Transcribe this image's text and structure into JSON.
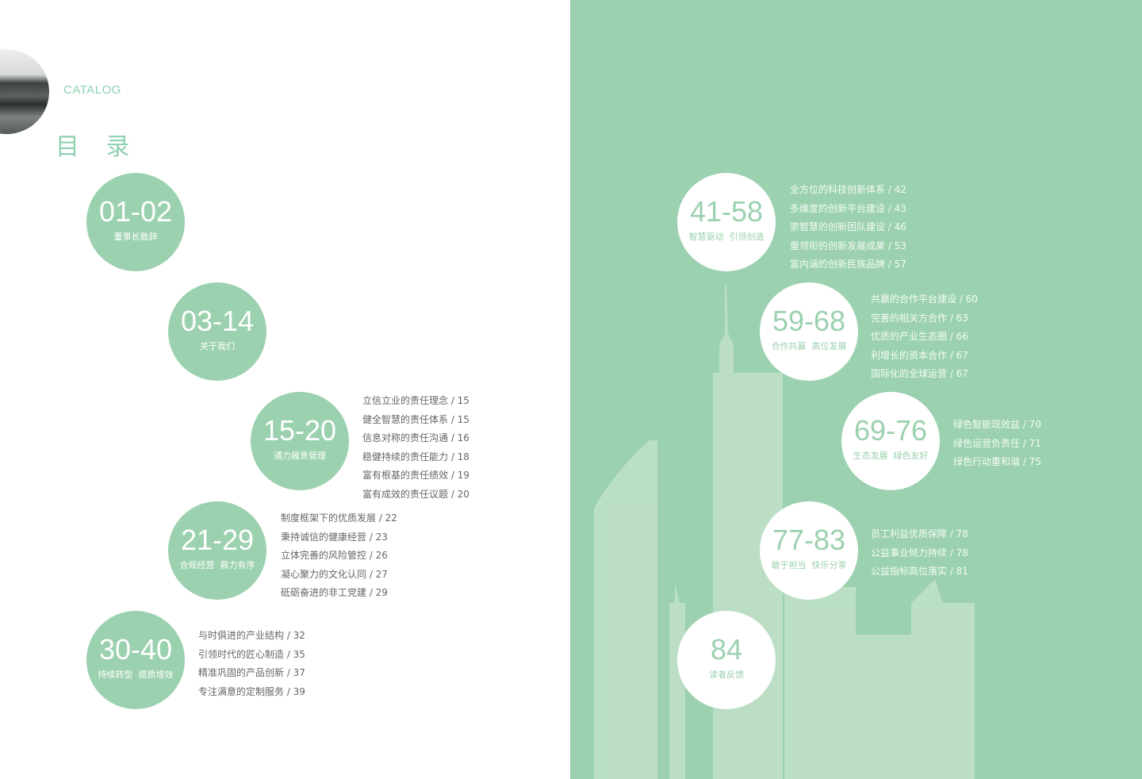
{
  "header": {
    "catalog": "CATALOG",
    "title": "目 录"
  },
  "colors": {
    "accent": "#9bd1ae",
    "panel": "#9bd1ae",
    "text": "#666666"
  },
  "sections": [
    {
      "range": "01-02",
      "subtitle": "董事长致辞",
      "items": []
    },
    {
      "range": "03-14",
      "subtitle": "关于我们",
      "items": []
    },
    {
      "range": "15-20",
      "subtitle": "通力履责管理",
      "items": [
        "立信立业的责任理念  /  15",
        "健全智慧的责任体系  /  15",
        "信息对称的责任沟通  /  16",
        "稳健持续的责任能力  /  18",
        "富有根基的责任绩效  /  19",
        "富有成效的责任议题  /  20"
      ]
    },
    {
      "range": "21-29",
      "subtitle": "合规经营  鼎力有序",
      "items": [
        "制度框架下的优质发展  /  22",
        "秉持诚信的健康经营  /  23",
        "立体完善的风险管控  /  26",
        "凝心聚力的文化认同  /  27",
        "砥砺奋进的非工党建  /  29"
      ]
    },
    {
      "range": "30-40",
      "subtitle": "持续转型  提质增效",
      "items": [
        "与时俱进的产业结构  /  32",
        "引领时代的匠心制造  /  35",
        "精准巩固的产品创新  /  37",
        "专注满意的定制服务  /  39"
      ]
    },
    {
      "range": "41-58",
      "subtitle": "智慧驱动  引领创造",
      "items": [
        "全方位的科技创新体系  /  42",
        "多维度的创新平台建设  /  43",
        "崇智慧的创新团队建设  /  46",
        "重领衔的创新发展成果  /  53",
        "富内涵的创新民族品牌  /  57"
      ]
    },
    {
      "range": "59-68",
      "subtitle": "合作共赢  高位发展",
      "items": [
        "共赢的合作平台建设  /  60",
        "完善的相关方合作  /  63",
        "优质的产业生态圈  /  66",
        "利增长的资本合作  /  67",
        "国际化的全球运营  /  67"
      ]
    },
    {
      "range": "69-76",
      "subtitle": "生态发展  绿色友好",
      "items": [
        "绿色智能现效益  /  70",
        "绿色运营负责任  /  71",
        "绿色行动重和谐  /  75"
      ]
    },
    {
      "range": "77-83",
      "subtitle": "敢于担当  快乐分享",
      "items": [
        "员工利益优质保障  /  78",
        "公益事业倾力持续  /  78",
        "公益指标高位落实  /  81"
      ]
    },
    {
      "range": "84",
      "subtitle": "读者反馈",
      "items": []
    }
  ]
}
